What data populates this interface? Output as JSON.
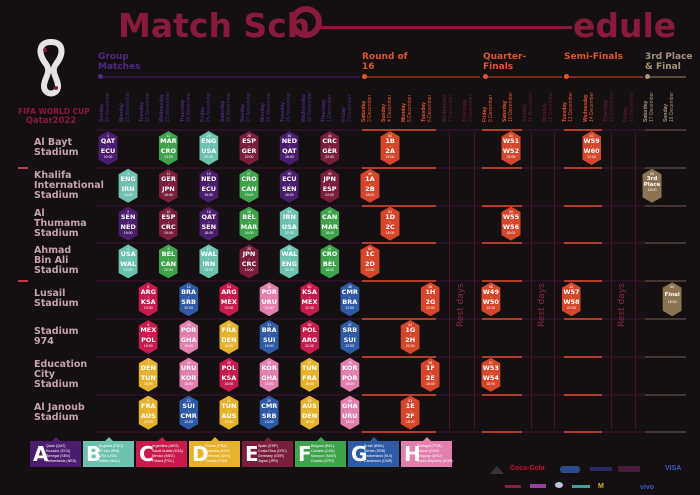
{
  "title": {
    "part1": "Match Sch",
    "part2": "edule"
  },
  "logo": {
    "line1": "FIFA WORLD CUP",
    "line2": "Qatar2022"
  },
  "colors": {
    "title": "#8a1a3c",
    "groups": {
      "A": "#4b1d6e",
      "B": "#6cc2ae",
      "C": "#c81a4c",
      "D": "#e6b22c",
      "E": "#7a1e3c",
      "F": "#3fa34b",
      "G": "#2f5aa6",
      "H": "#e27fae"
    },
    "knockout": "#d6462b",
    "final": "#8c7352",
    "phase_text": {
      "group": "#4f2a80",
      "r16": "#e0552f",
      "qf": "#e0552f",
      "sf": "#e0552f",
      "rest": "#5c1a34",
      "final": "#a8937a"
    }
  },
  "phases": [
    {
      "key": "group",
      "label": "Group Matches"
    },
    {
      "key": "r16",
      "label": "Round of 16"
    },
    {
      "key": "qf",
      "label": "Quarter-Finals"
    },
    {
      "key": "sf",
      "label": "Semi-Finals"
    },
    {
      "key": "final",
      "label": "3rd Place & Final"
    }
  ],
  "dates": [
    {
      "weekday": "Sunday",
      "date": "20 November",
      "phase": "group"
    },
    {
      "weekday": "Monday",
      "date": "21 November",
      "phase": "group"
    },
    {
      "weekday": "Tuesday",
      "date": "22 November",
      "phase": "group"
    },
    {
      "weekday": "Wednesday",
      "date": "23 November",
      "phase": "group"
    },
    {
      "weekday": "Thursday",
      "date": "24 November",
      "phase": "group"
    },
    {
      "weekday": "Friday",
      "date": "25 November",
      "phase": "group"
    },
    {
      "weekday": "Saturday",
      "date": "26 November",
      "phase": "group"
    },
    {
      "weekday": "Sunday",
      "date": "27 November",
      "phase": "group"
    },
    {
      "weekday": "Monday",
      "date": "28 November",
      "phase": "group"
    },
    {
      "weekday": "Tuesday",
      "date": "29 November",
      "phase": "group"
    },
    {
      "weekday": "Wednesday",
      "date": "30 November",
      "phase": "group"
    },
    {
      "weekday": "Thursday",
      "date": "1 December",
      "phase": "group"
    },
    {
      "weekday": "Friday",
      "date": "2 December",
      "phase": "group"
    },
    {
      "weekday": "Saturday",
      "date": "3 December",
      "phase": "r16"
    },
    {
      "weekday": "Sunday",
      "date": "4 December",
      "phase": "r16"
    },
    {
      "weekday": "Monday",
      "date": "5 December",
      "phase": "r16"
    },
    {
      "weekday": "Tuesday",
      "date": "6 December",
      "phase": "r16"
    },
    {
      "weekday": "Wednesday",
      "date": "7 December",
      "phase": "rest"
    },
    {
      "weekday": "Thursday",
      "date": "8 December",
      "phase": "rest"
    },
    {
      "weekday": "Friday",
      "date": "9 December",
      "phase": "qf"
    },
    {
      "weekday": "Saturday",
      "date": "10 December",
      "phase": "qf"
    },
    {
      "weekday": "Sunday",
      "date": "11 December",
      "phase": "rest"
    },
    {
      "weekday": "Monday",
      "date": "12 December",
      "phase": "rest"
    },
    {
      "weekday": "Tuesday",
      "date": "13 December",
      "phase": "sf"
    },
    {
      "weekday": "Wednesday",
      "date": "14 December",
      "phase": "sf"
    },
    {
      "weekday": "Thursday",
      "date": "15 December",
      "phase": "rest"
    },
    {
      "weekday": "Friday",
      "date": "16 December",
      "phase": "rest"
    },
    {
      "weekday": "Saturday",
      "date": "17 December",
      "phase": "final"
    },
    {
      "weekday": "Sunday",
      "date": "18 December",
      "phase": "final"
    }
  ],
  "rest_label": "Rest days",
  "stadiums": [
    {
      "name": "Al Bayt Stadium",
      "lines": [
        "Al Bayt",
        "Stadium"
      ]
    },
    {
      "name": "Khalifa International Stadium",
      "lines": [
        "Khalifa",
        "International",
        "Stadium"
      ]
    },
    {
      "name": "Al Thumama Stadium",
      "lines": [
        "Al",
        "Thumama",
        "Stadium"
      ]
    },
    {
      "name": "Ahmad Bin Ali Stadium",
      "lines": [
        "Ahmad",
        "Bin Ali",
        "Stadium"
      ]
    },
    {
      "name": "Lusail Stadium",
      "lines": [
        "Lusail",
        "Stadium"
      ]
    },
    {
      "name": "Stadium 974",
      "lines": [
        "Stadium 974"
      ]
    },
    {
      "name": "Education City Stadium",
      "lines": [
        "Education",
        "City",
        "Stadium"
      ]
    },
    {
      "name": "Al Janoub Stadium",
      "lines": [
        "Al Janoub",
        "Stadium"
      ]
    }
  ],
  "matches": [
    {
      "n": 1,
      "date": "20 November",
      "stadium": "Al Bayt Stadium",
      "t1": "QAT",
      "t2": "ECU",
      "time": "19:00",
      "group": "A"
    },
    {
      "n": 2,
      "date": "21 November",
      "stadium": "Al Thumama Stadium",
      "t1": "SEN",
      "t2": "NED",
      "time": "19:00",
      "group": "A"
    },
    {
      "n": 3,
      "date": "21 November",
      "stadium": "Khalifa International Stadium",
      "t1": "ENG",
      "t2": "IRN",
      "time": "16:00",
      "group": "B"
    },
    {
      "n": 4,
      "date": "21 November",
      "stadium": "Ahmad Bin Ali Stadium",
      "t1": "USA",
      "t2": "WAL",
      "time": "22:00",
      "group": "B"
    },
    {
      "n": 5,
      "date": "22 November",
      "stadium": "Stadium 974",
      "t1": "MEX",
      "t2": "POL",
      "time": "19:00",
      "group": "C"
    },
    {
      "n": 6,
      "date": "22 November",
      "stadium": "Al Janoub Stadium",
      "t1": "FRA",
      "t2": "AUS",
      "time": "22:00",
      "group": "D"
    },
    {
      "n": 7,
      "date": "22 November",
      "stadium": "Education City Stadium",
      "t1": "DEN",
      "t2": "TUN",
      "time": "16:00",
      "group": "D"
    },
    {
      "n": 8,
      "date": "22 November",
      "stadium": "Lusail Stadium",
      "t1": "ARG",
      "t2": "KSA",
      "time": "13:00",
      "group": "C"
    },
    {
      "n": 9,
      "date": "23 November",
      "stadium": "Ahmad Bin Ali Stadium",
      "t1": "BEL",
      "t2": "CAN",
      "time": "22:00",
      "group": "F"
    },
    {
      "n": 10,
      "date": "23 November",
      "stadium": "Al Thumama Stadium",
      "t1": "ESP",
      "t2": "CRC",
      "time": "19:00",
      "group": "E"
    },
    {
      "n": 11,
      "date": "23 November",
      "stadium": "Khalifa International Stadium",
      "t1": "GER",
      "t2": "JPN",
      "time": "16:00",
      "group": "E"
    },
    {
      "n": 12,
      "date": "23 November",
      "stadium": "Al Bayt Stadium",
      "t1": "MAR",
      "t2": "CRO",
      "time": "13:00",
      "group": "F"
    },
    {
      "n": 13,
      "date": "24 November",
      "stadium": "Al Janoub Stadium",
      "t1": "SUI",
      "t2": "CMR",
      "time": "13:00",
      "group": "G"
    },
    {
      "n": 14,
      "date": "24 November",
      "stadium": "Lusail Stadium",
      "t1": "BRA",
      "t2": "SRB",
      "time": "22:00",
      "group": "G"
    },
    {
      "n": 15,
      "date": "24 November",
      "stadium": "Stadium 974",
      "t1": "POR",
      "t2": "GHA",
      "time": "19:00",
      "group": "H"
    },
    {
      "n": 16,
      "date": "24 November",
      "stadium": "Education City Stadium",
      "t1": "URU",
      "t2": "KOR",
      "time": "16:00",
      "group": "H"
    },
    {
      "n": 17,
      "date": "25 November",
      "stadium": "Ahmad Bin Ali Stadium",
      "t1": "WAL",
      "t2": "IRN",
      "time": "13:00",
      "group": "B"
    },
    {
      "n": 18,
      "date": "25 November",
      "stadium": "Al Thumama Stadium",
      "t1": "QAT",
      "t2": "SEN",
      "time": "16:00",
      "group": "A"
    },
    {
      "n": 19,
      "date": "25 November",
      "stadium": "Khalifa International Stadium",
      "t1": "NED",
      "t2": "ECU",
      "time": "19:00",
      "group": "A"
    },
    {
      "n": 20,
      "date": "25 November",
      "stadium": "Al Bayt Stadium",
      "t1": "ENG",
      "t2": "USA",
      "time": "22:00",
      "group": "B"
    },
    {
      "n": 21,
      "date": "26 November",
      "stadium": "Al Janoub Stadium",
      "t1": "TUN",
      "t2": "AUS",
      "time": "13:00",
      "group": "D"
    },
    {
      "n": 22,
      "date": "26 November",
      "stadium": "Education City Stadium",
      "t1": "POL",
      "t2": "KSA",
      "time": "16:00",
      "group": "C"
    },
    {
      "n": 23,
      "date": "26 November",
      "stadium": "Stadium 974",
      "t1": "FRA",
      "t2": "DEN",
      "time": "19:00",
      "group": "D"
    },
    {
      "n": 24,
      "date": "26 November",
      "stadium": "Lusail Stadium",
      "t1": "ARG",
      "t2": "MEX",
      "time": "22:00",
      "group": "C"
    },
    {
      "n": 25,
      "date": "27 November",
      "stadium": "Ahmad Bin Ali Stadium",
      "t1": "JPN",
      "t2": "CRC",
      "time": "13:00",
      "group": "E"
    },
    {
      "n": 26,
      "date": "27 November",
      "stadium": "Al Thumama Stadium",
      "t1": "BEL",
      "t2": "MAR",
      "time": "16:00",
      "group": "F"
    },
    {
      "n": 27,
      "date": "27 November",
      "stadium": "Khalifa International Stadium",
      "t1": "CRO",
      "t2": "CAN",
      "time": "19:00",
      "group": "F"
    },
    {
      "n": 28,
      "date": "27 November",
      "stadium": "Al Bayt Stadium",
      "t1": "ESP",
      "t2": "GER",
      "time": "22:00",
      "group": "E"
    },
    {
      "n": 29,
      "date": "28 November",
      "stadium": "Al Janoub Stadium",
      "t1": "CMR",
      "t2": "SRB",
      "time": "13:00",
      "group": "G"
    },
    {
      "n": 30,
      "date": "28 November",
      "stadium": "Education City Stadium",
      "t1": "KOR",
      "t2": "GHA",
      "time": "16:00",
      "group": "H"
    },
    {
      "n": 31,
      "date": "28 November",
      "stadium": "Stadium 974",
      "t1": "BRA",
      "t2": "SUI",
      "time": "19:00",
      "group": "G"
    },
    {
      "n": 32,
      "date": "28 November",
      "stadium": "Lusail Stadium",
      "t1": "POR",
      "t2": "URU",
      "time": "22:00",
      "group": "H"
    },
    {
      "n": 33,
      "date": "29 November",
      "stadium": "Ahmad Bin Ali Stadium",
      "t1": "WAL",
      "t2": "ENG",
      "time": "22:00",
      "group": "B"
    },
    {
      "n": 34,
      "date": "29 November",
      "stadium": "Al Thumama Stadium",
      "t1": "IRN",
      "t2": "USA",
      "time": "22:00",
      "group": "B"
    },
    {
      "n": 35,
      "date": "29 November",
      "stadium": "Khalifa International Stadium",
      "t1": "ECU",
      "t2": "SEN",
      "time": "18:00",
      "group": "A"
    },
    {
      "n": 36,
      "date": "29 November",
      "stadium": "Al Bayt Stadium",
      "t1": "NED",
      "t2": "QAT",
      "time": "18:00",
      "group": "A"
    },
    {
      "n": 37,
      "date": "30 November",
      "stadium": "Education City Stadium",
      "t1": "TUN",
      "t2": "FRA",
      "time": "18:00",
      "group": "D"
    },
    {
      "n": 38,
      "date": "30 November",
      "stadium": "Al Janoub Stadium",
      "t1": "AUS",
      "t2": "DEN",
      "time": "18:00",
      "group": "D"
    },
    {
      "n": 39,
      "date": "30 November",
      "stadium": "Stadium 974",
      "t1": "POL",
      "t2": "ARG",
      "time": "22:00",
      "group": "C"
    },
    {
      "n": 40,
      "date": "30 November",
      "stadium": "Lusail Stadium",
      "t1": "KSA",
      "t2": "MEX",
      "time": "22:00",
      "group": "C"
    },
    {
      "n": 41,
      "date": "1 December",
      "stadium": "Ahmad Bin Ali Stadium",
      "t1": "CRO",
      "t2": "BEL",
      "time": "18:00",
      "group": "F"
    },
    {
      "n": 42,
      "date": "1 December",
      "stadium": "Al Thumama Stadium",
      "t1": "CAN",
      "t2": "MAR",
      "time": "18:00",
      "group": "F"
    },
    {
      "n": 43,
      "date": "1 December",
      "stadium": "Khalifa International Stadium",
      "t1": "JPN",
      "t2": "ESP",
      "time": "22:00",
      "group": "E"
    },
    {
      "n": 44,
      "date": "1 December",
      "stadium": "Al Bayt Stadium",
      "t1": "CRC",
      "t2": "GER",
      "time": "22:00",
      "group": "E"
    },
    {
      "n": 45,
      "date": "2 December",
      "stadium": "Education City Stadium",
      "t1": "KOR",
      "t2": "POR",
      "time": "18:00",
      "group": "H"
    },
    {
      "n": 46,
      "date": "2 December",
      "stadium": "Al Janoub Stadium",
      "t1": "GHA",
      "t2": "URU",
      "time": "18:00",
      "group": "H"
    },
    {
      "n": 47,
      "date": "2 December",
      "stadium": "Stadium 974",
      "t1": "SRB",
      "t2": "SUI",
      "time": "22:00",
      "group": "G"
    },
    {
      "n": 48,
      "date": "2 December",
      "stadium": "Lusail Stadium",
      "t1": "CMR",
      "t2": "BRA",
      "time": "22:00",
      "group": "G"
    },
    {
      "n": 49,
      "date": "3 December",
      "stadium": "Khalifa International Stadium",
      "t1": "1A",
      "t2": "2B",
      "time": "18:00",
      "group": "KO"
    },
    {
      "n": 50,
      "date": "3 December",
      "stadium": "Ahmad Bin Ali Stadium",
      "t1": "1C",
      "t2": "2D",
      "time": "22:00",
      "group": "KO"
    },
    {
      "n": 51,
      "date": "4 December",
      "stadium": "Al Thumama Stadium",
      "t1": "1D",
      "t2": "2C",
      "time": "18:00",
      "group": "KO"
    },
    {
      "n": 52,
      "date": "4 December",
      "stadium": "Al Bayt Stadium",
      "t1": "1B",
      "t2": "2A",
      "time": "22:00",
      "group": "KO"
    },
    {
      "n": 53,
      "date": "5 December",
      "stadium": "Al Janoub Stadium",
      "t1": "1E",
      "t2": "2F",
      "time": "18:00",
      "group": "KO"
    },
    {
      "n": 54,
      "date": "5 December",
      "stadium": "Stadium 974",
      "t1": "1G",
      "t2": "2H",
      "time": "22:00",
      "group": "KO"
    },
    {
      "n": 55,
      "date": "6 December",
      "stadium": "Education City Stadium",
      "t1": "1F",
      "t2": "2E",
      "time": "18:00",
      "group": "KO"
    },
    {
      "n": 56,
      "date": "6 December",
      "stadium": "Lusail Stadium",
      "t1": "1H",
      "t2": "2G",
      "time": "22:00",
      "group": "KO"
    },
    {
      "n": 57,
      "date": "9 December",
      "stadium": "Education City Stadium",
      "t1": "W53",
      "t2": "W54",
      "time": "18:00",
      "group": "KO"
    },
    {
      "n": 58,
      "date": "9 December",
      "stadium": "Lusail Stadium",
      "t1": "W49",
      "t2": "W50",
      "time": "22:00",
      "group": "KO"
    },
    {
      "n": 59,
      "date": "10 December",
      "stadium": "Al Thumama Stadium",
      "t1": "W55",
      "t2": "W56",
      "time": "18:00",
      "group": "KO"
    },
    {
      "n": 60,
      "date": "10 December",
      "stadium": "Al Bayt Stadium",
      "t1": "W51",
      "t2": "W52",
      "time": "22:00",
      "group": "KO"
    },
    {
      "n": 61,
      "date": "13 December",
      "stadium": "Lusail Stadium",
      "t1": "W57",
      "t2": "W58",
      "time": "22:00",
      "group": "KO"
    },
    {
      "n": 62,
      "date": "14 December",
      "stadium": "Al Bayt Stadium",
      "t1": "W59",
      "t2": "W60",
      "time": "22:00",
      "group": "KO"
    },
    {
      "n": 63,
      "date": "17 December",
      "stadium": "Khalifa International Stadium",
      "t1": "3rd",
      "t2": "Place",
      "time": "18:00",
      "group": "FINAL"
    },
    {
      "n": 64,
      "date": "18 December",
      "stadium": "Lusail Stadium",
      "t1": "Final",
      "t2": "",
      "time": "18:00",
      "group": "FINAL"
    }
  ],
  "groups": [
    {
      "letter": "A",
      "teams": [
        "Qatar (QAT)",
        "Ecuador (ECU)",
        "Senegal (SEN)",
        "Netherlands (NED)"
      ]
    },
    {
      "letter": "B",
      "teams": [
        "England (ENG)",
        "IR Iran (IRN)",
        "USA (USA)",
        "Wales (WAL)"
      ]
    },
    {
      "letter": "C",
      "teams": [
        "Argentina (ARG)",
        "Saudi Arabia (KSA)",
        "Mexico (MEX)",
        "Poland (POL)"
      ]
    },
    {
      "letter": "D",
      "teams": [
        "France (FRA)",
        "Australia (AUS)",
        "Denmark (DEN)",
        "Tunisia (TUN)"
      ]
    },
    {
      "letter": "E",
      "teams": [
        "Spain (ESP)",
        "Costa Rica (CRC)",
        "Germany (GER)",
        "Japan (JPN)"
      ]
    },
    {
      "letter": "F",
      "teams": [
        "Belgium (BEL)",
        "Canada (CAN)",
        "Morocco (MAR)",
        "Croatia (CRO)"
      ]
    },
    {
      "letter": "G",
      "teams": [
        "Brazil (BRA)",
        "Serbia (SRB)",
        "Switzerland (SUI)",
        "Cameroon (CMR)"
      ]
    },
    {
      "letter": "H",
      "teams": [
        "Portugal (POR)",
        "Ghana (GHA)",
        "Uruguay (URU)",
        "Korea Republic (KOR)"
      ]
    }
  ],
  "sponsors": [
    "Coca-Cola",
    "VISA",
    "vivo",
    "McDonald's"
  ]
}
